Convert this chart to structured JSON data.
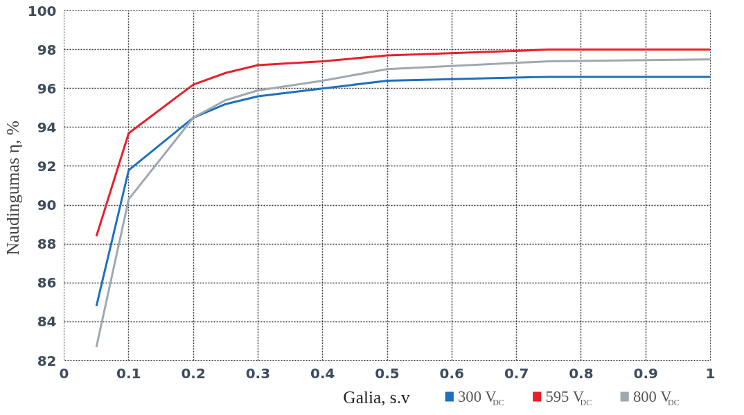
{
  "chart_data": {
    "type": "line",
    "xlabel": "Galia, s.v",
    "ylabel": "Naudingumas η,  %",
    "x": [
      0.05,
      0.1,
      0.2,
      0.25,
      0.3,
      0.4,
      0.5,
      0.75,
      1
    ],
    "series": [
      {
        "name": "300 V$_{DC}$",
        "color": "#1f6fc0",
        "values": [
          84.8,
          91.8,
          94.5,
          95.2,
          95.6,
          96.0,
          96.4,
          96.6,
          96.6
        ]
      },
      {
        "name": "595 V$_{DC}$",
        "color": "#e8202a",
        "values": [
          88.4,
          93.7,
          96.2,
          96.8,
          97.2,
          97.4,
          97.7,
          98.0,
          98.0
        ]
      },
      {
        "name": "800 V$_{DC}$",
        "color": "#a0a8b0",
        "values": [
          82.7,
          90.3,
          94.5,
          95.4,
          95.9,
          96.4,
          97.0,
          97.4,
          97.5
        ]
      }
    ],
    "xlim": [
      0,
      1
    ],
    "ylim": [
      82,
      100
    ],
    "xticks": [
      0,
      0.1,
      0.2,
      0.3,
      0.4,
      0.5,
      0.6,
      0.7,
      0.8,
      0.9,
      1
    ],
    "yticks": [
      82,
      84,
      86,
      88,
      90,
      92,
      94,
      96,
      98,
      100
    ],
    "grid": true,
    "legend": "bottom right",
    "marker": "none",
    "line_style": "solid"
  }
}
